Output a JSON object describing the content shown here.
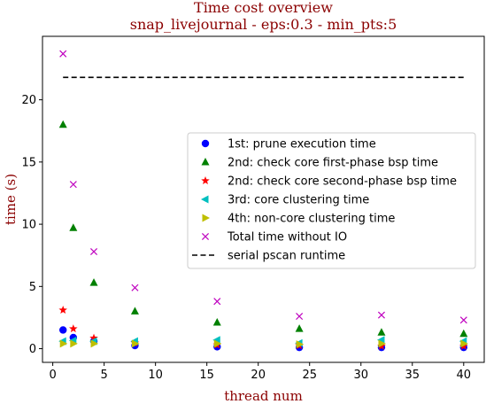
{
  "chart_data": {
    "type": "scatter",
    "title_line1": "Time cost overview",
    "title_line2": "snap_livejournal - eps:0.3 - min_pts:5",
    "xlabel": "thread num",
    "ylabel": "time (s)",
    "xlim": [
      -1,
      42
    ],
    "ylim": [
      -1.1,
      25.1
    ],
    "xticks": [
      0,
      5,
      10,
      15,
      20,
      25,
      30,
      35,
      40
    ],
    "yticks": [
      0,
      5,
      10,
      15,
      20
    ],
    "grid": false,
    "legend_position": "center-right",
    "x": [
      1,
      2,
      4,
      8,
      16,
      24,
      32,
      40
    ],
    "series": [
      {
        "name": "1st: prune execution time",
        "marker": "circle",
        "color": "#0000ff",
        "values": [
          1.5,
          0.9,
          0.6,
          0.25,
          0.15,
          0.1,
          0.1,
          0.1
        ]
      },
      {
        "name": "2nd: check core first-phase bsp time",
        "marker": "triangle-up",
        "color": "#008000",
        "values": [
          18.0,
          9.7,
          5.3,
          3.0,
          2.1,
          1.6,
          1.3,
          1.2
        ]
      },
      {
        "name": "2nd: check core second-phase bsp time",
        "marker": "star",
        "color": "#ff0000",
        "values": [
          3.1,
          1.6,
          0.85,
          0.45,
          0.3,
          0.25,
          0.2,
          0.2
        ]
      },
      {
        "name": "3rd: core clustering time",
        "marker": "triangle-left",
        "color": "#00bfbf",
        "values": [
          0.6,
          0.65,
          0.6,
          0.6,
          0.7,
          0.45,
          0.7,
          0.6
        ]
      },
      {
        "name": "4th: non-core clustering time",
        "marker": "triangle-right",
        "color": "#bfbf00",
        "values": [
          0.4,
          0.4,
          0.4,
          0.4,
          0.4,
          0.35,
          0.4,
          0.4
        ]
      },
      {
        "name": "Total time without IO",
        "marker": "x",
        "color": "#bf00bf",
        "values": [
          23.7,
          13.2,
          7.8,
          4.9,
          3.8,
          2.6,
          2.7,
          2.3
        ]
      }
    ],
    "reference_line": {
      "name": "serial pscan runtime",
      "value": 21.8,
      "x_range": [
        1,
        40
      ],
      "color": "#000000",
      "style": "dashed"
    }
  }
}
